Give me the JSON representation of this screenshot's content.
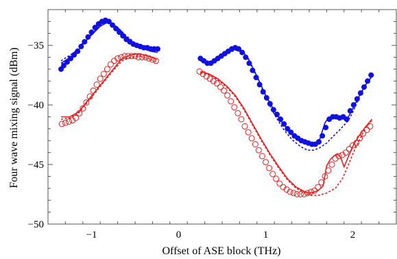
{
  "chart_data": {
    "type": "scatter",
    "xlabel": "Offset of ASE block (THz)",
    "ylabel": "Four wave mixing signal (dBm)",
    "xlim": [
      -1.5,
      2.5
    ],
    "ylim": [
      -50,
      -32
    ],
    "xticks": [
      -1,
      0,
      1,
      2
    ],
    "xtick_labels": [
      "−1",
      "0",
      "1",
      "2"
    ],
    "yticks": [
      -35,
      -40,
      -45,
      -50
    ],
    "ytick_labels": [
      "−35",
      "−40",
      "−45",
      "−50"
    ],
    "grid": false,
    "legend": "none",
    "colors": {
      "blue": "#1010e0",
      "red": "#e02020"
    },
    "series": [
      {
        "style": "filled-markers",
        "color": "blue",
        "x": [
          -1.35,
          -1.32,
          -1.28,
          -1.24,
          -1.2,
          -1.16,
          -1.12,
          -1.08,
          -1.04,
          -1.0,
          -0.96,
          -0.92,
          -0.88,
          -0.84,
          -0.8,
          -0.76,
          -0.72,
          -0.68,
          -0.64,
          -0.6,
          -0.56,
          -0.52,
          -0.48,
          -0.44,
          -0.4,
          -0.36,
          -0.32,
          -0.28,
          -0.24,
          0.25,
          0.29,
          0.33,
          0.37,
          0.41,
          0.45,
          0.49,
          0.53,
          0.57,
          0.61,
          0.65,
          0.69,
          0.73,
          0.77,
          0.81,
          0.85,
          0.89,
          0.93,
          0.97,
          1.01,
          1.05,
          1.09,
          1.13,
          1.17,
          1.21,
          1.25,
          1.29,
          1.33,
          1.37,
          1.41,
          1.45,
          1.49,
          1.53,
          1.57,
          1.61,
          1.65,
          1.69,
          1.73,
          1.77,
          1.81,
          1.85,
          1.89,
          1.93,
          1.97,
          2.01,
          2.05,
          2.09,
          2.13,
          2.17,
          2.21
        ],
        "y": [
          -37.0,
          -36.7,
          -36.4,
          -36.1,
          -35.8,
          -35.5,
          -35.1,
          -34.7,
          -34.3,
          -33.9,
          -33.5,
          -33.2,
          -33.0,
          -32.9,
          -33.0,
          -33.3,
          -33.6,
          -33.9,
          -34.2,
          -34.5,
          -34.7,
          -34.9,
          -35.0,
          -35.1,
          -35.2,
          -35.2,
          -35.3,
          -35.3,
          -35.3,
          -36.1,
          -36.3,
          -36.5,
          -36.5,
          -36.3,
          -36.1,
          -35.9,
          -35.7,
          -35.5,
          -35.3,
          -35.2,
          -35.3,
          -35.6,
          -36.0,
          -36.5,
          -37.1,
          -37.7,
          -38.3,
          -38.9,
          -39.4,
          -39.9,
          -40.4,
          -40.8,
          -41.2,
          -41.6,
          -42.0,
          -42.3,
          -42.6,
          -42.8,
          -43.0,
          -43.1,
          -43.2,
          -43.3,
          -43.3,
          -43.1,
          -42.6,
          -41.9,
          -41.2,
          -41.0,
          -41.0,
          -41.1,
          -41.0,
          -41.2,
          -40.5,
          -40.0,
          -39.5,
          -39.0,
          -38.5,
          -38.0,
          -37.5
        ]
      },
      {
        "style": "open-markers",
        "color": "red",
        "x": [
          -1.34,
          -1.3,
          -1.26,
          -1.22,
          -1.18,
          -1.14,
          -1.1,
          -1.06,
          -1.02,
          -0.98,
          -0.94,
          -0.9,
          -0.86,
          -0.82,
          -0.78,
          -0.74,
          -0.7,
          -0.66,
          -0.62,
          -0.58,
          -0.54,
          -0.5,
          -0.46,
          -0.42,
          -0.38,
          -0.34,
          -0.3,
          -0.26,
          0.24,
          0.28,
          0.32,
          0.36,
          0.4,
          0.44,
          0.48,
          0.52,
          0.56,
          0.6,
          0.64,
          0.68,
          0.72,
          0.76,
          0.8,
          0.84,
          0.88,
          0.92,
          0.96,
          1.0,
          1.04,
          1.08,
          1.12,
          1.16,
          1.2,
          1.24,
          1.28,
          1.32,
          1.36,
          1.4,
          1.44,
          1.48,
          1.52,
          1.56,
          1.6,
          1.64,
          1.68,
          1.72,
          1.76,
          1.8,
          1.84,
          1.88,
          1.92,
          1.96,
          2.0,
          2.04,
          2.08,
          2.12,
          2.16,
          2.2
        ],
        "y": [
          -41.6,
          -41.5,
          -41.4,
          -41.3,
          -41.1,
          -40.7,
          -40.3,
          -39.8,
          -39.3,
          -38.8,
          -38.3,
          -37.8,
          -37.4,
          -37.0,
          -36.6,
          -36.3,
          -36.1,
          -36.0,
          -35.9,
          -35.9,
          -35.9,
          -35.9,
          -36.0,
          -36.0,
          -36.0,
          -36.1,
          -36.2,
          -36.3,
          -37.2,
          -37.4,
          -37.6,
          -37.8,
          -38.0,
          -38.2,
          -38.5,
          -38.8,
          -39.2,
          -39.7,
          -40.2,
          -40.7,
          -41.2,
          -41.8,
          -42.3,
          -42.8,
          -43.3,
          -43.8,
          -44.3,
          -44.8,
          -45.3,
          -45.8,
          -46.2,
          -46.6,
          -46.9,
          -47.1,
          -47.3,
          -47.4,
          -47.5,
          -47.5,
          -47.5,
          -47.4,
          -47.3,
          -47.2,
          -46.9,
          -46.5,
          -46.0,
          -45.5,
          -45.0,
          -44.5,
          -44.3,
          -44.2,
          -44.0,
          -43.7,
          -43.4,
          -43.2,
          -42.8,
          -42.4,
          -42.1,
          -41.8
        ]
      },
      {
        "style": "solid-line",
        "color": "blue",
        "x": [
          -1.35,
          -1.2,
          -1.05,
          -0.9,
          -0.8,
          -0.7,
          -0.6,
          -0.5,
          -0.4,
          -0.32,
          -0.24,
          0.25,
          0.35,
          0.45,
          0.55,
          0.65,
          0.72,
          0.8,
          0.9,
          1.0,
          1.1,
          1.2,
          1.3,
          1.4,
          1.48,
          1.55,
          1.62,
          1.68,
          1.72,
          1.78,
          1.85,
          1.9,
          1.95,
          2.0,
          2.05,
          2.1,
          2.15,
          2.22
        ],
        "y": [
          -36.5,
          -35.8,
          -34.5,
          -33.4,
          -33.0,
          -33.5,
          -34.3,
          -34.9,
          -35.3,
          -35.5,
          -35.6,
          -36.3,
          -36.5,
          -36.2,
          -35.7,
          -35.3,
          -35.4,
          -36.1,
          -37.6,
          -39.2,
          -40.5,
          -41.6,
          -42.4,
          -43.0,
          -43.2,
          -43.3,
          -42.9,
          -41.5,
          -41.1,
          -40.9,
          -41.1,
          -41.2,
          -41.0,
          -40.3,
          -39.6,
          -38.9,
          -38.3,
          -37.6
        ]
      },
      {
        "style": "dashed-line",
        "color": "blue",
        "x": [
          -1.35,
          -1.2,
          -1.05,
          -0.9,
          -0.8,
          -0.7,
          -0.6,
          -0.5,
          -0.4,
          -0.32,
          -0.24,
          0.25,
          0.35,
          0.45,
          0.55,
          0.65,
          0.72,
          0.8,
          0.9,
          1.0,
          1.1,
          1.2,
          1.3,
          1.4,
          1.48,
          1.55,
          1.62,
          1.7,
          1.78,
          1.85,
          1.9,
          1.95,
          2.0,
          2.05,
          2.1,
          2.15,
          2.22
        ],
        "y": [
          -36.3,
          -35.6,
          -34.4,
          -33.3,
          -33.0,
          -33.5,
          -34.2,
          -34.8,
          -35.1,
          -35.3,
          -35.4,
          -36.2,
          -36.4,
          -36.1,
          -35.7,
          -35.4,
          -35.5,
          -36.2,
          -37.7,
          -39.4,
          -40.8,
          -42.0,
          -42.9,
          -43.5,
          -43.8,
          -43.8,
          -43.6,
          -43.2,
          -42.6,
          -42.1,
          -41.7,
          -41.3,
          -40.6,
          -39.8,
          -39.0,
          -38.3,
          -37.6
        ]
      },
      {
        "style": "solid-line",
        "color": "red",
        "x": [
          -1.35,
          -1.25,
          -1.15,
          -1.05,
          -0.95,
          -0.85,
          -0.75,
          -0.65,
          -0.55,
          -0.45,
          -0.35,
          -0.25,
          0.25,
          0.35,
          0.45,
          0.55,
          0.65,
          0.75,
          0.85,
          0.95,
          1.05,
          1.15,
          1.25,
          1.35,
          1.45,
          1.52,
          1.6,
          1.66,
          1.7,
          1.74,
          1.78,
          1.82,
          1.86,
          1.9,
          1.94,
          1.98,
          2.02,
          2.08,
          2.14,
          2.22
        ],
        "y": [
          -41.0,
          -41.0,
          -40.6,
          -39.7,
          -38.8,
          -37.9,
          -37.0,
          -36.1,
          -35.8,
          -35.7,
          -35.9,
          -36.2,
          -37.2,
          -37.4,
          -37.8,
          -38.4,
          -39.2,
          -40.3,
          -41.6,
          -42.9,
          -44.1,
          -45.2,
          -46.2,
          -46.9,
          -47.3,
          -47.4,
          -47.2,
          -46.8,
          -45.1,
          -44.6,
          -44.3,
          -44.1,
          -44.4,
          -45.2,
          -44.5,
          -43.8,
          -43.2,
          -42.5,
          -41.9,
          -41.2
        ]
      },
      {
        "style": "dashed-line",
        "color": "red",
        "x": [
          -1.35,
          -1.25,
          -1.15,
          -1.05,
          -0.95,
          -0.85,
          -0.75,
          -0.65,
          -0.55,
          -0.45,
          -0.35,
          -0.25,
          0.25,
          0.35,
          0.45,
          0.55,
          0.65,
          0.75,
          0.85,
          0.95,
          1.05,
          1.15,
          1.25,
          1.35,
          1.45,
          1.52,
          1.6,
          1.7,
          1.8,
          1.88,
          1.95,
          2.02,
          2.1,
          2.16,
          2.22
        ],
        "y": [
          -41.2,
          -41.1,
          -40.7,
          -39.8,
          -38.9,
          -38.0,
          -37.1,
          -36.3,
          -36.0,
          -35.9,
          -36.1,
          -36.4,
          -37.3,
          -37.5,
          -37.9,
          -38.5,
          -39.3,
          -40.4,
          -41.7,
          -43.0,
          -44.2,
          -45.3,
          -46.3,
          -47.0,
          -47.4,
          -47.6,
          -47.6,
          -47.4,
          -47.0,
          -46.2,
          -45.0,
          -43.8,
          -42.6,
          -41.8,
          -41.3
        ]
      }
    ]
  }
}
